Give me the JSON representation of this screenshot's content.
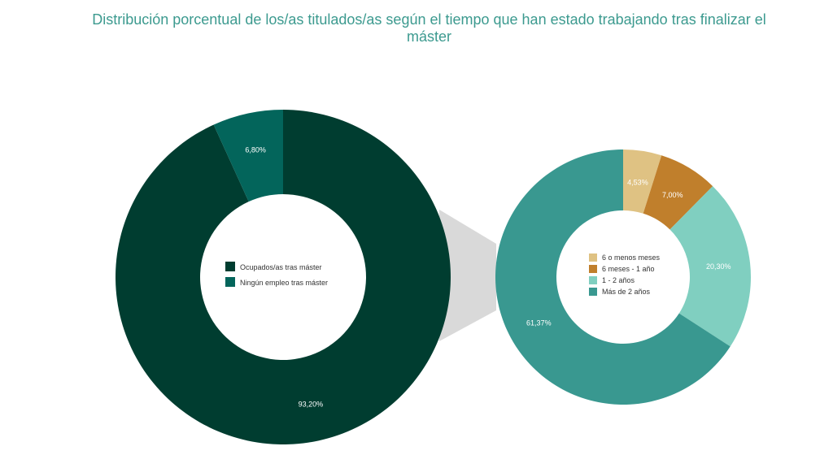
{
  "title": "Distribución porcentual de los/as titulados/as según el tiempo que han estado trabajando tras finalizar el máster",
  "chart_data": [
    {
      "type": "pie",
      "title": "Distribución porcentual de los/as titulados/as según el tiempo que han estado trabajando tras finalizar el máster",
      "categories": [
        "Ocupados/as tras máster",
        "Ningún empleo tras máster"
      ],
      "values": [
        93.2,
        6.8
      ],
      "labels": [
        "93,20%",
        "6,80%"
      ],
      "colors": [
        "#003d30",
        "#03655b"
      ],
      "legend": "center"
    },
    {
      "type": "pie",
      "categories": [
        "6 o menos meses",
        "6 meses - 1 año",
        "1 - 2 años",
        "Más de 2 años"
      ],
      "values": [
        4.53,
        7.0,
        20.3,
        61.37
      ],
      "labels": [
        "4,53%",
        "7,00%",
        "20,30%",
        "61,37%"
      ],
      "colors": [
        "#dfc283",
        "#c07f2c",
        "#80cfc0",
        "#399890"
      ],
      "legend": "center"
    }
  ],
  "connector_color": "#d9d9d9"
}
